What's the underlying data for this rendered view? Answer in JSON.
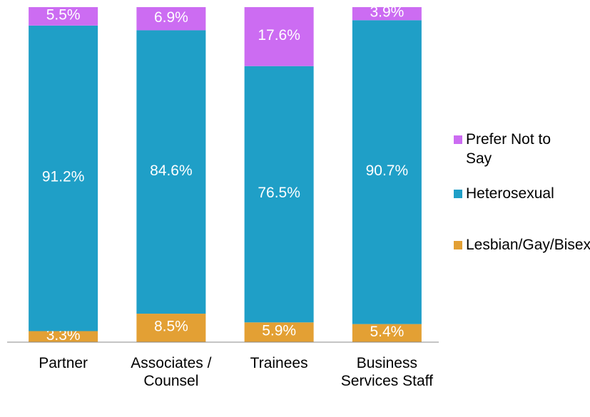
{
  "chart_data": {
    "type": "stacked-bar",
    "categories": [
      "Partner",
      "Associates / Counsel",
      "Trainees",
      "Business Services Staff"
    ],
    "series": [
      {
        "name": "Lesbian/Gay/Bisexual",
        "color": "#e3a034",
        "values": [
          3.3,
          8.5,
          5.9,
          5.4
        ],
        "value_labels": [
          "3.3%",
          "8.5%",
          "5.9%",
          "5.4%"
        ]
      },
      {
        "name": "Heterosexual",
        "color": "#1f9fc7",
        "values": [
          91.2,
          84.6,
          76.5,
          90.7
        ],
        "value_labels": [
          "91.2%",
          "84.6%",
          "76.5%",
          "90.7%"
        ]
      },
      {
        "name": "Prefer Not to Say",
        "color": "#cc6cf2",
        "values": [
          5.5,
          6.9,
          17.6,
          3.9
        ],
        "value_labels": [
          "5.5%",
          "6.9%",
          "17.6%",
          "3.9%"
        ]
      }
    ],
    "ylim": [
      0,
      100
    ],
    "legend": "right"
  }
}
